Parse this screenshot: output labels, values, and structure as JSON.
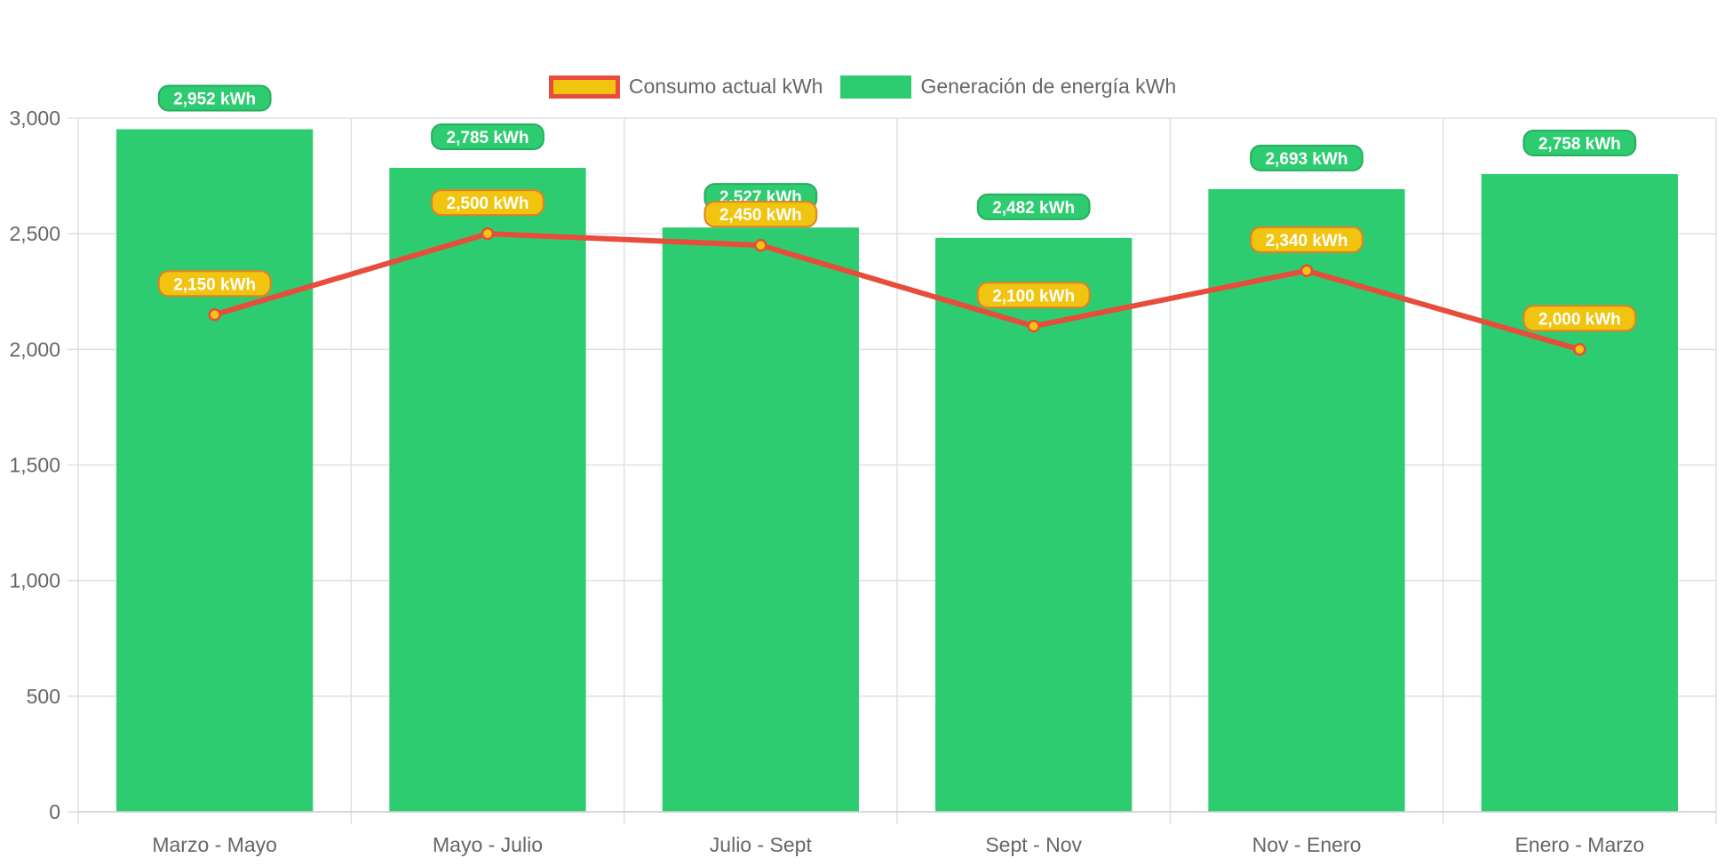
{
  "chart_data": {
    "type": "bar",
    "title": "",
    "xlabel": "",
    "ylabel": "",
    "ylim": [
      0,
      3000
    ],
    "y_ticks": [
      "0",
      "500",
      "1,000",
      "1,500",
      "2,000",
      "2,500",
      "3,000"
    ],
    "y_tick_values": [
      0,
      500,
      1000,
      1500,
      2000,
      2500,
      3000
    ],
    "grid": true,
    "legend_position": "top",
    "categories": [
      "Marzo - Mayo",
      "Mayo - Julio",
      "Julio - Sept",
      "Sept - Nov",
      "Nov - Enero",
      "Enero - Marzo"
    ],
    "series": [
      {
        "name": "Consumo actual kWh",
        "type": "line",
        "values": [
          2150,
          2500,
          2450,
          2100,
          2340,
          2000
        ],
        "labels": [
          "2,150 kWh",
          "2,500 kWh",
          "2,450 kWh",
          "2,100 kWh",
          "2,340 kWh",
          "2,000 kWh"
        ],
        "color": "#e74c3c",
        "fill_color": "#f1c40f"
      },
      {
        "name": "Generación de energía kWh",
        "type": "bar",
        "values": [
          2952,
          2785,
          2527,
          2482,
          2693,
          2758
        ],
        "labels": [
          "2,952 kWh",
          "2,785 kWh",
          "2,527 kWh",
          "2,482 kWh",
          "2,693 kWh",
          "2,758 kWh"
        ],
        "color": "#2ecc71",
        "label_border": "#27ae60"
      }
    ]
  }
}
